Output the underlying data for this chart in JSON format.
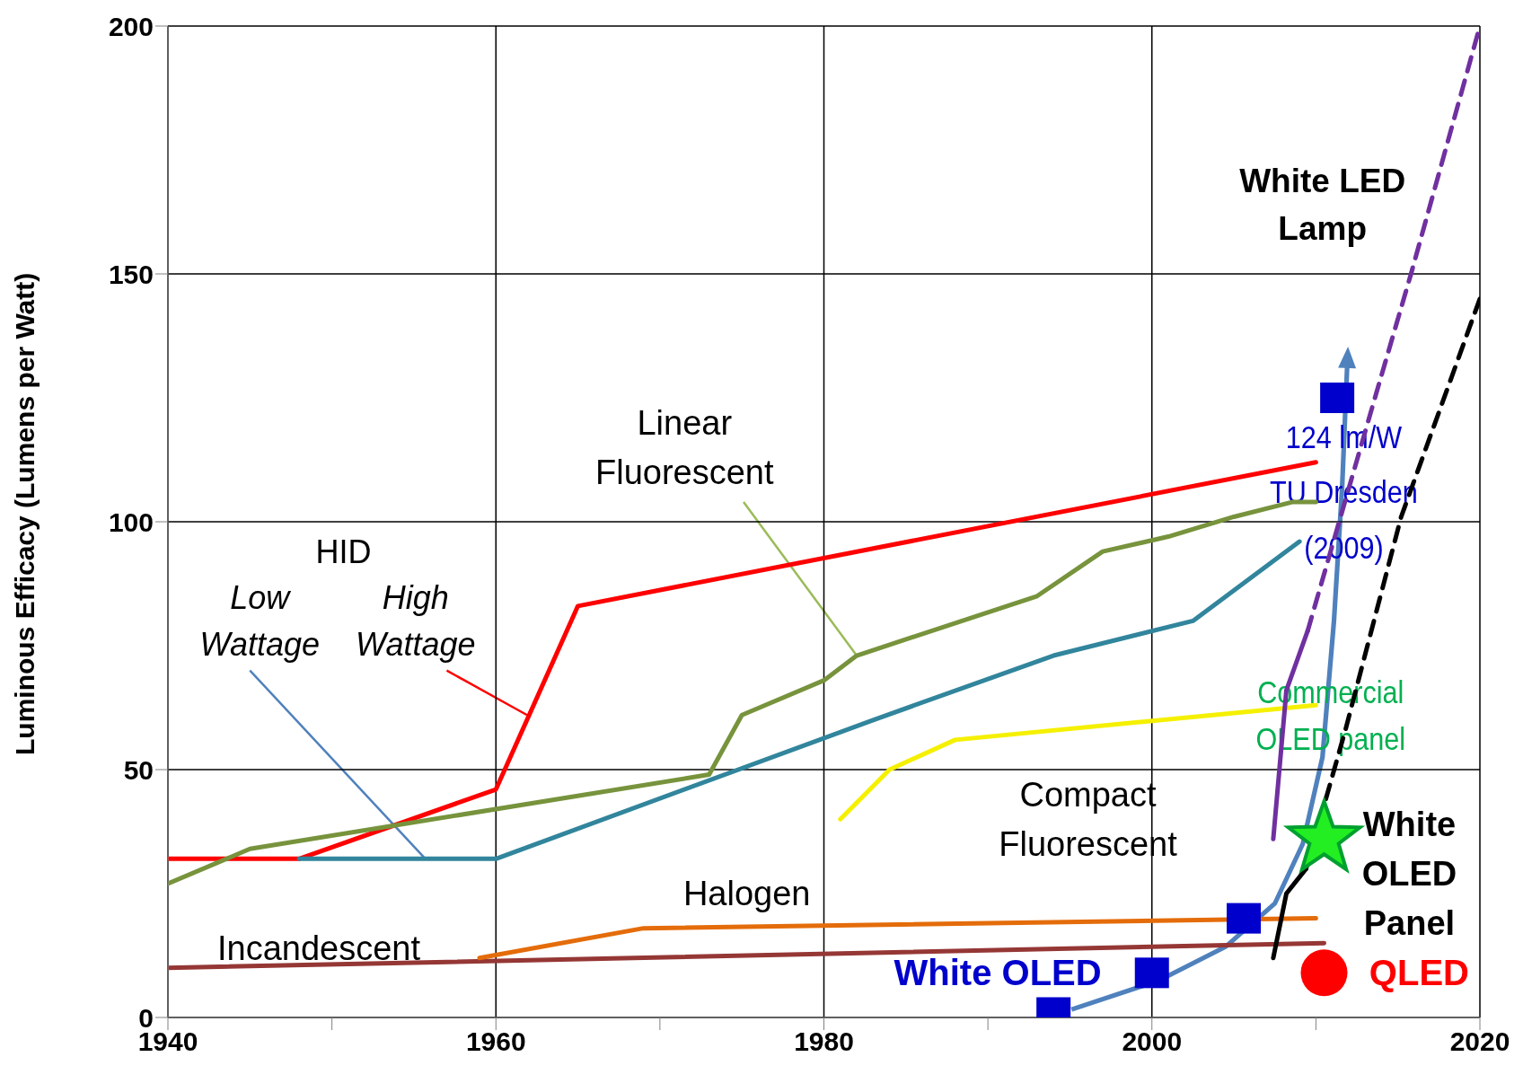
{
  "chart_data": {
    "type": "line",
    "ylabel": "Luminous Efficacy (Lumens per Watt)",
    "xlim": [
      1940,
      2020
    ],
    "xticks": [
      1940,
      {
        "value": 1950,
        "label": null
      },
      1960,
      {
        "value": 1970,
        "label": null
      },
      1980,
      {
        "value": 1990,
        "label": null
      },
      2000,
      {
        "value": 2010,
        "label": null
      },
      2020
    ],
    "ylim": [
      0,
      200
    ],
    "yticks": [
      0,
      50,
      100,
      150,
      200
    ],
    "grid": true,
    "series": [
      {
        "color": "#953735",
        "marker": "none",
        "x": [
          1940,
          2010.5
        ],
        "values": [
          10,
          15
        ]
      },
      {
        "color": "#e46c0a",
        "marker": "none",
        "x": [
          1959,
          1969,
          2010
        ],
        "values": [
          12,
          18,
          20
        ]
      },
      {
        "color": "#ff0000",
        "marker": "none",
        "x": [
          1940,
          1948,
          1960,
          1965,
          2010
        ],
        "values": [
          32,
          32,
          46,
          83,
          112
        ]
      },
      {
        "color": "#31859c",
        "marker": "none",
        "x": [
          1948,
          1960,
          1983,
          1994,
          2002.5,
          2009
        ],
        "values": [
          32,
          32,
          60,
          73,
          80,
          96
        ]
      },
      {
        "color": "#77933c",
        "marker": "none",
        "x": [
          1940,
          1945,
          1973,
          1975,
          1980,
          1982,
          1993,
          1997,
          2001,
          2005,
          2008.6,
          2010
        ],
        "values": [
          27,
          34,
          49,
          61,
          68,
          73,
          85,
          94,
          97,
          101,
          104,
          104
        ]
      },
      {
        "color": "#f5f000",
        "marker": "none",
        "x": [
          1981,
          1984,
          1988,
          2010
        ],
        "values": [
          40,
          50,
          56,
          63
        ]
      },
      {
        "color": "#7030a0",
        "marker": "none",
        "line_style": "solid",
        "x": [
          2007.4,
          2008.2,
          2009.5
        ],
        "values": [
          36,
          66,
          78
        ]
      },
      {
        "color": "#7030a0",
        "marker": "none",
        "line_style": "dashed",
        "x": [
          2009.5,
          2013.6,
          2015.8,
          2020
        ],
        "values": [
          78,
          125,
          150,
          200
        ]
      },
      {
        "color": "#000000",
        "marker": "none",
        "line_style": "solid",
        "x": [
          2007.4,
          2008.2,
          2009.4
        ],
        "values": [
          12,
          25,
          30
        ]
      },
      {
        "color": "#000000",
        "marker": "none",
        "line_style": "dashed",
        "x": [
          2009.4,
          2011.8,
          2015.2,
          2020
        ],
        "values": [
          30,
          58,
          101,
          145
        ]
      },
      {
        "type": "scatter",
        "color": "#0000cc",
        "marker": "square",
        "x": [
          1994,
          2000,
          2005.6,
          2011.3
        ],
        "values": [
          1,
          9,
          20,
          125
        ]
      },
      {
        "type": "scatter",
        "color": "#22ee22",
        "marker": "star",
        "x": [
          2010.5
        ],
        "values": [
          36
        ]
      },
      {
        "type": "scatter",
        "color": "#ff0000",
        "marker": "circle",
        "x": [
          2010.5
        ],
        "values": [
          9
        ]
      }
    ],
    "annotations": [
      "HID",
      {
        "text": "Low\nWattage",
        "x": 1955.7,
        "y": 32
      },
      {
        "text": "High\nWattage",
        "x": 1961.9,
        "y": 61
      },
      {
        "text": "Linear\nFluorescent",
        "x": 1982,
        "y": 73
      },
      "Compact\nFluorescent",
      "Halogen",
      "Incandescent",
      "White LED\nLamp",
      "124 lm/W\nTU Dresden\n(2009)",
      "Commercial\nOLED panel",
      "White\nOLED\nPanel",
      "White OLED",
      "QLED"
    ]
  }
}
